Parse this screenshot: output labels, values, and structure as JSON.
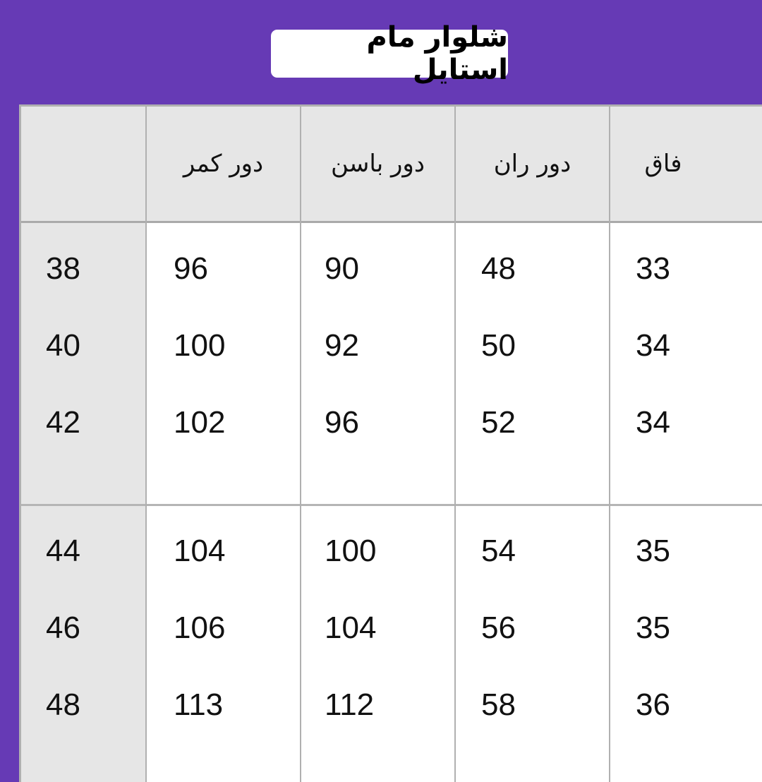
{
  "title": "شلوار مام استایل",
  "colors": {
    "background": "#663ab5",
    "header_bg": "#e6e6e6"
  },
  "table": {
    "headers": [
      "",
      "دور کمر",
      "دور باسن",
      "دور ران",
      "فاق"
    ],
    "groups": [
      [
        [
          "38",
          "96",
          "90",
          "48",
          "33"
        ],
        [
          "40",
          "100",
          "92",
          "50",
          "34"
        ],
        [
          "42",
          "102",
          "96",
          "52",
          "34"
        ]
      ],
      [
        [
          "44",
          "104",
          "100",
          "54",
          "35"
        ],
        [
          "46",
          "106",
          "104",
          "56",
          "35"
        ],
        [
          "48",
          "113",
          "112",
          "58",
          "36"
        ]
      ]
    ]
  }
}
